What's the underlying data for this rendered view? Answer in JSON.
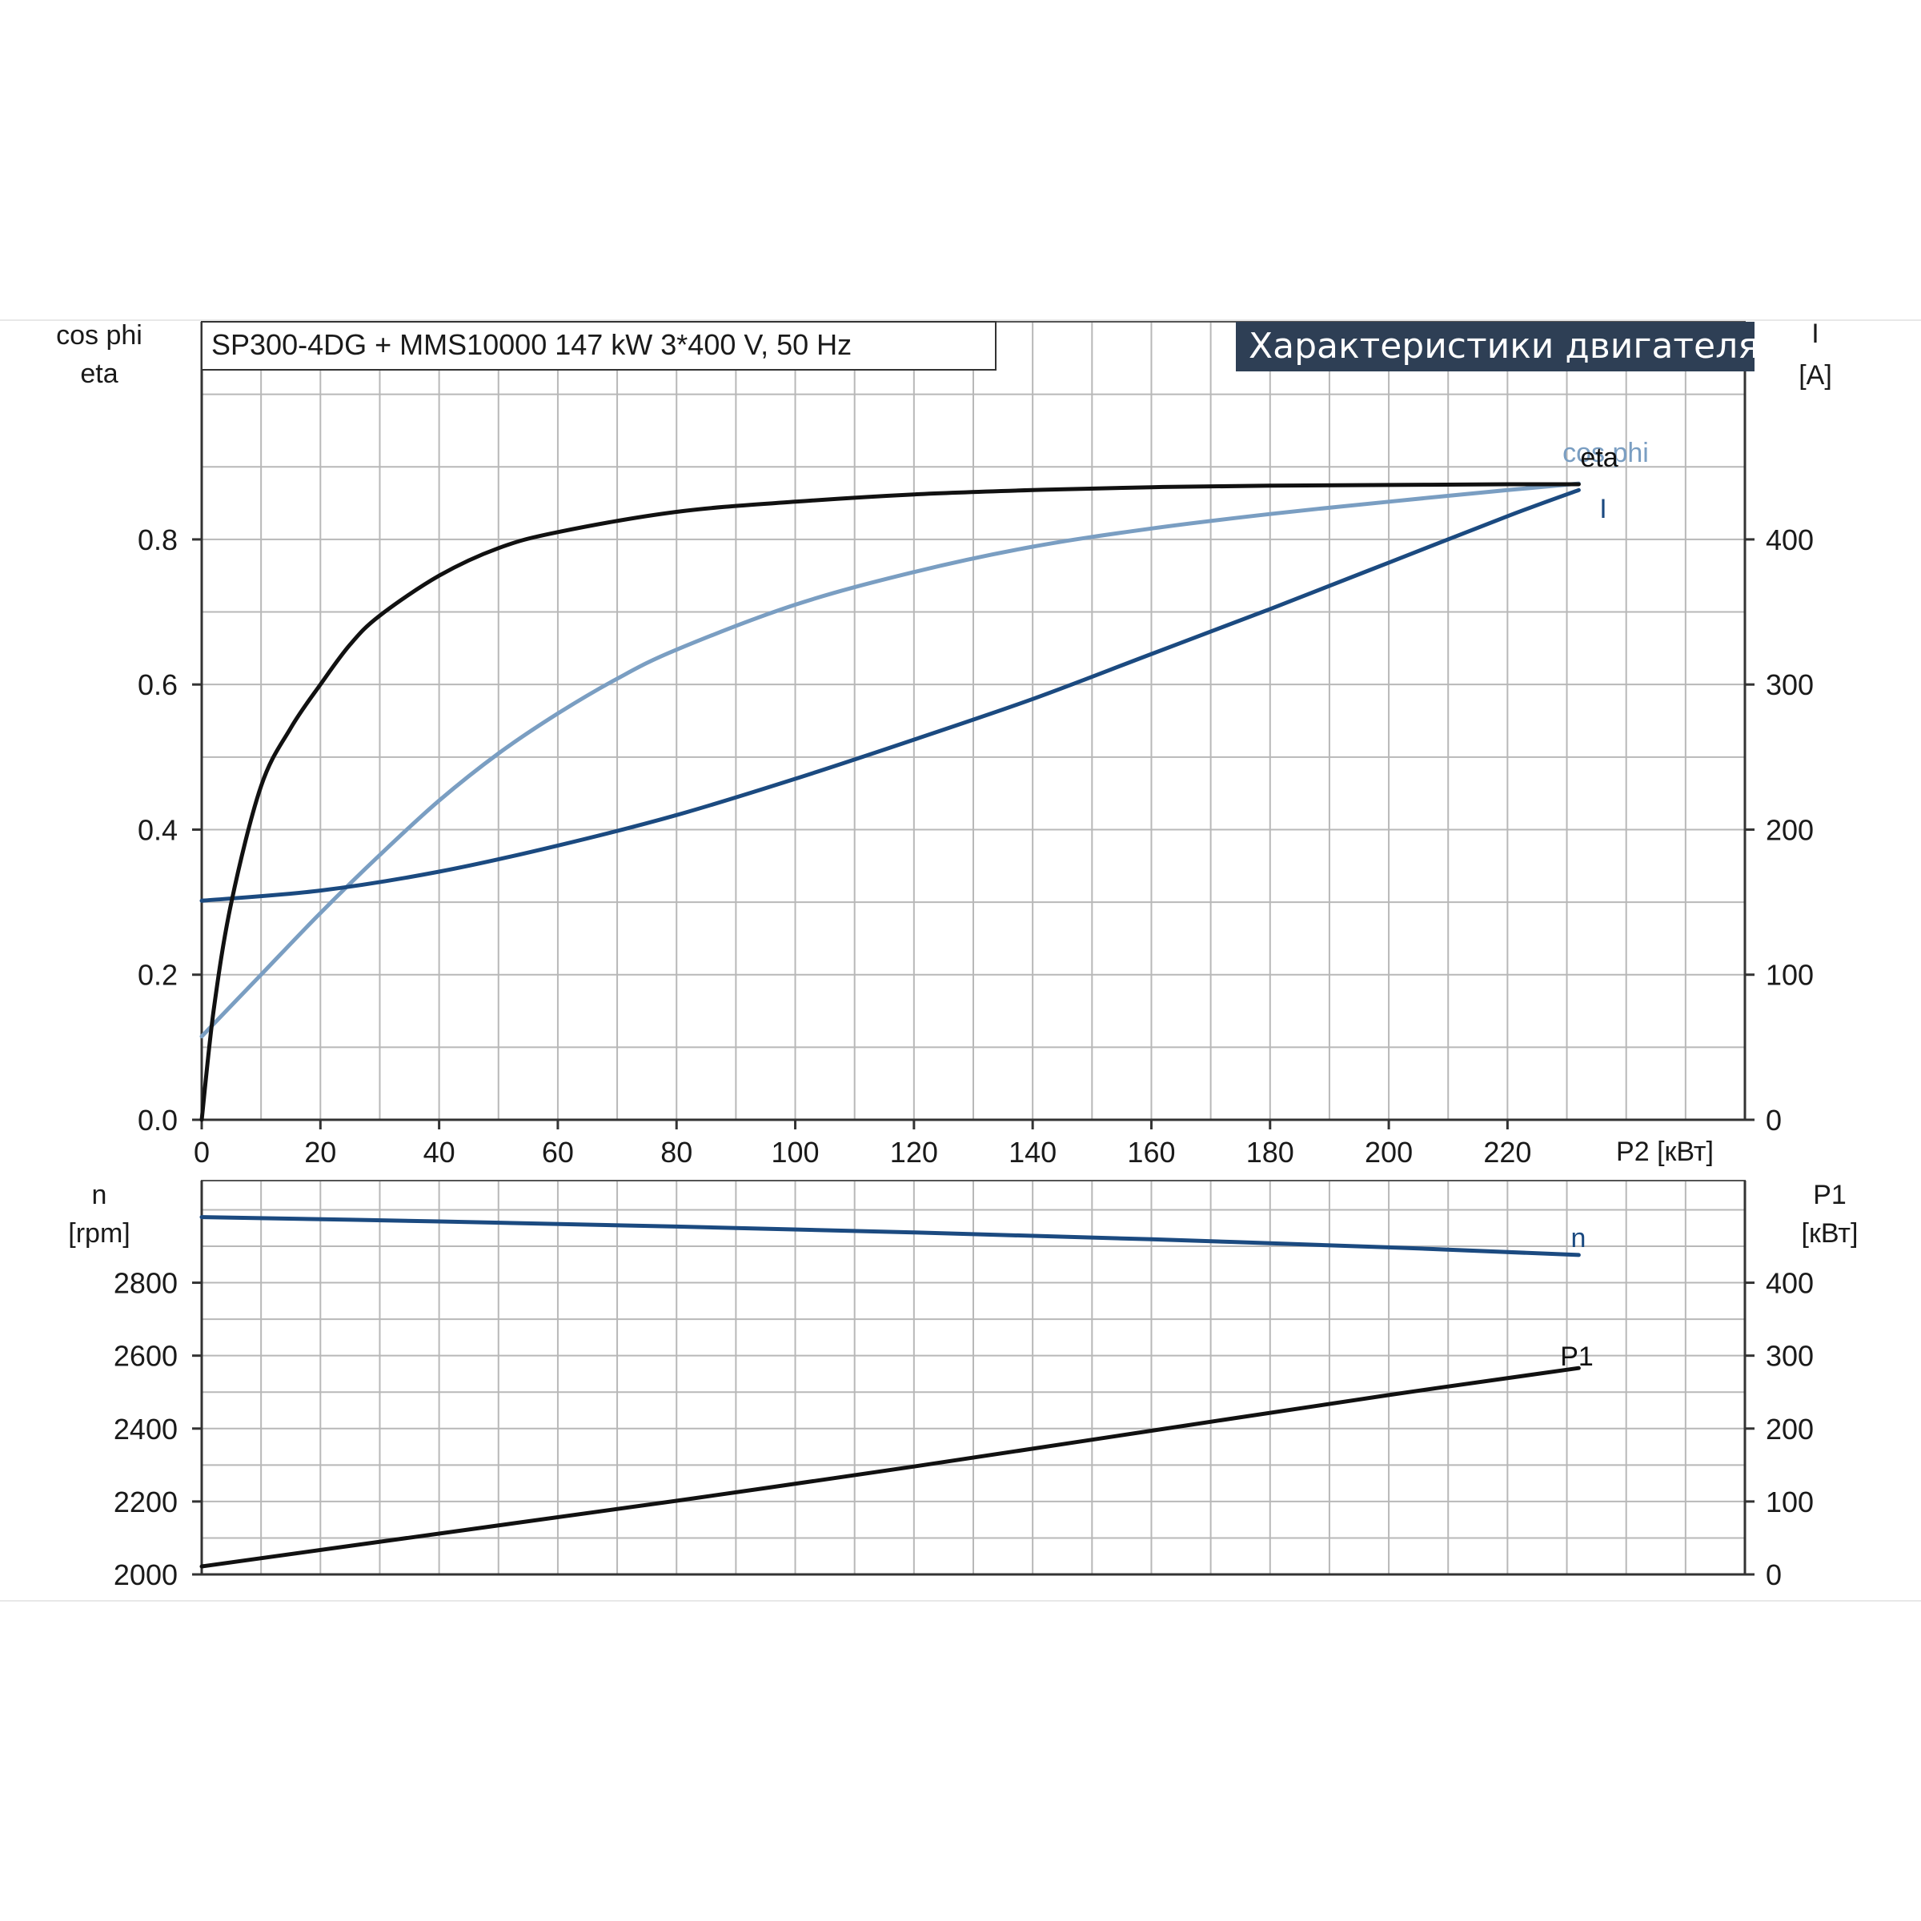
{
  "header": {
    "info": "SP300-4DG + MMS10000   147 kW   3*400 V, 50 Hz",
    "banner": "Характеристики двигателя"
  },
  "colors": {
    "eta": "#111111",
    "cos_phi": "#7a9ec2",
    "current": "#1b4a80",
    "n": "#1b4a80",
    "p1": "#111111",
    "banner_bg": "#2e3f55"
  },
  "top_axes": {
    "left_title_1": "cos phi",
    "left_title_2": "eta",
    "right_title_1": "I",
    "right_title_2": "[A]",
    "x_title": "P2 [кВт]"
  },
  "bottom_axes": {
    "left_title_1": "n",
    "left_title_2": "[rpm]",
    "right_title_1": "P1",
    "right_title_2": "[кВт]"
  },
  "chart_data": [
    {
      "type": "line",
      "title": "Характеристики двигателя",
      "xlabel": "P2 [кВт]",
      "ylabel": "cos phi / eta",
      "y2label": "I [A]",
      "xlim": [
        0,
        260
      ],
      "ylim": [
        0,
        1.1
      ],
      "y2lim": [
        0,
        550
      ],
      "x_ticks": [
        "0",
        "20",
        "40",
        "60",
        "80",
        "100",
        "120",
        "140",
        "160",
        "180",
        "200",
        "220"
      ],
      "y_ticks": [
        "0.0",
        "0.2",
        "0.4",
        "0.6",
        "0.8"
      ],
      "y2_ticks": [
        "0",
        "100",
        "200",
        "300",
        "400"
      ],
      "grid": true,
      "series": [
        {
          "name": "eta",
          "axis": "left",
          "x": [
            0,
            2,
            5,
            10,
            15,
            20,
            25,
            30,
            40,
            50,
            60,
            80,
            100,
            120,
            140,
            160,
            180,
            200,
            220,
            232
          ],
          "y": [
            0.0,
            0.15,
            0.3,
            0.46,
            0.54,
            0.6,
            0.655,
            0.695,
            0.75,
            0.788,
            0.81,
            0.838,
            0.852,
            0.862,
            0.868,
            0.872,
            0.874,
            0.875,
            0.876,
            0.876
          ]
        },
        {
          "name": "cos phi",
          "axis": "left",
          "x": [
            0,
            10,
            20,
            30,
            40,
            50,
            60,
            70,
            80,
            100,
            120,
            140,
            160,
            180,
            200,
            220,
            232
          ],
          "y": [
            0.115,
            0.2,
            0.285,
            0.365,
            0.44,
            0.505,
            0.56,
            0.608,
            0.648,
            0.71,
            0.755,
            0.79,
            0.815,
            0.835,
            0.852,
            0.868,
            0.877
          ]
        },
        {
          "name": "I",
          "axis": "right",
          "x": [
            0,
            20,
            40,
            60,
            80,
            100,
            120,
            140,
            160,
            180,
            200,
            220,
            232
          ],
          "y": [
            151,
            158,
            171,
            189,
            210,
            235,
            262,
            290,
            321,
            352,
            384,
            416,
            434
          ]
        }
      ]
    },
    {
      "type": "line",
      "ylabel": "n [rpm]",
      "y2label": "P1 [кВт]",
      "xlim": [
        0,
        260
      ],
      "ylim": [
        2000,
        3080
      ],
      "y2lim": [
        0,
        540
      ],
      "y_ticks": [
        "2000",
        "2200",
        "2400",
        "2600",
        "2800"
      ],
      "y2_ticks": [
        "0",
        "100",
        "200",
        "300",
        "400"
      ],
      "grid": true,
      "series": [
        {
          "name": "n",
          "axis": "left",
          "x": [
            0,
            40,
            80,
            120,
            160,
            200,
            232
          ],
          "y": [
            2980,
            2968,
            2954,
            2938,
            2919,
            2897,
            2876
          ]
        },
        {
          "name": "P1",
          "axis": "right",
          "x": [
            0,
            40,
            80,
            120,
            160,
            200,
            232
          ],
          "y": [
            11,
            56,
            101,
            148,
            197,
            246,
            283
          ]
        }
      ]
    }
  ]
}
